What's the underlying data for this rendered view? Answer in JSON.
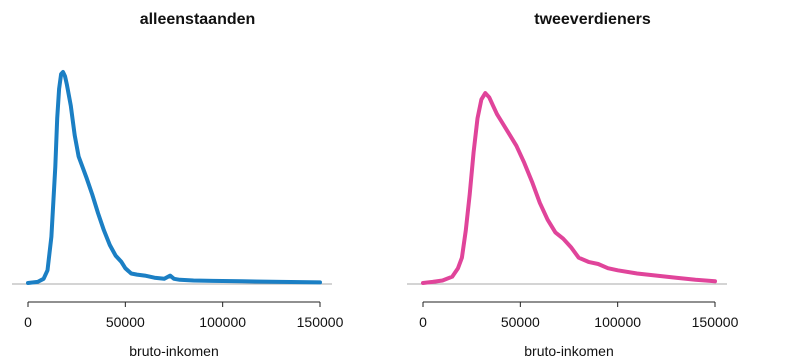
{
  "chart_data": [
    {
      "type": "line",
      "title": "alleenstaanden",
      "xlabel": "bruto-inkomen",
      "ylabel": "",
      "xlim": [
        -5000,
        155000
      ],
      "ylim": [
        0,
        1
      ],
      "x_ticks": [
        0,
        50000,
        100000,
        150000
      ],
      "x_tick_labels": [
        "0",
        "50000",
        "100000",
        "150000"
      ],
      "y_axis_shown": false,
      "baseline": true,
      "grid": false,
      "color": "#1b7fc4",
      "x": [
        0,
        5000,
        8000,
        10000,
        12000,
        14000,
        15000,
        16000,
        17000,
        18000,
        19000,
        20000,
        22000,
        24000,
        26000,
        28000,
        30000,
        33000,
        36000,
        39000,
        42000,
        45000,
        48000,
        50000,
        53000,
        56000,
        60000,
        65000,
        70000,
        73000,
        75000,
        78000,
        85000,
        95000,
        110000,
        130000,
        150000
      ],
      "y": [
        0.0,
        0.005,
        0.02,
        0.06,
        0.22,
        0.55,
        0.78,
        0.92,
        0.99,
        1.0,
        0.98,
        0.94,
        0.84,
        0.7,
        0.6,
        0.55,
        0.5,
        0.42,
        0.33,
        0.25,
        0.18,
        0.13,
        0.1,
        0.07,
        0.045,
        0.04,
        0.035,
        0.025,
        0.02,
        0.035,
        0.02,
        0.015,
        0.012,
        0.01,
        0.008,
        0.005,
        0.003
      ]
    },
    {
      "type": "line",
      "title": "tweeverdieners",
      "xlabel": "bruto-inkomen",
      "ylabel": "",
      "xlim": [
        -5000,
        155000
      ],
      "ylim": [
        0,
        1
      ],
      "x_ticks": [
        0,
        50000,
        100000,
        150000
      ],
      "x_tick_labels": [
        "0",
        "50000",
        "100000",
        "150000"
      ],
      "y_axis_shown": false,
      "baseline": true,
      "grid": false,
      "color": "#e0449a",
      "x": [
        0,
        5000,
        10000,
        15000,
        18000,
        20000,
        22000,
        24000,
        26000,
        28000,
        30000,
        32000,
        34000,
        36000,
        38000,
        40000,
        44000,
        48000,
        52000,
        56000,
        60000,
        64000,
        68000,
        72000,
        76000,
        80000,
        85000,
        90000,
        95000,
        100000,
        110000,
        120000,
        130000,
        140000,
        150000
      ],
      "y": [
        0.0,
        0.005,
        0.012,
        0.03,
        0.07,
        0.12,
        0.25,
        0.42,
        0.62,
        0.78,
        0.87,
        0.9,
        0.88,
        0.84,
        0.8,
        0.77,
        0.71,
        0.65,
        0.57,
        0.48,
        0.38,
        0.3,
        0.24,
        0.21,
        0.17,
        0.12,
        0.1,
        0.09,
        0.07,
        0.06,
        0.045,
        0.035,
        0.025,
        0.015,
        0.008
      ]
    }
  ]
}
